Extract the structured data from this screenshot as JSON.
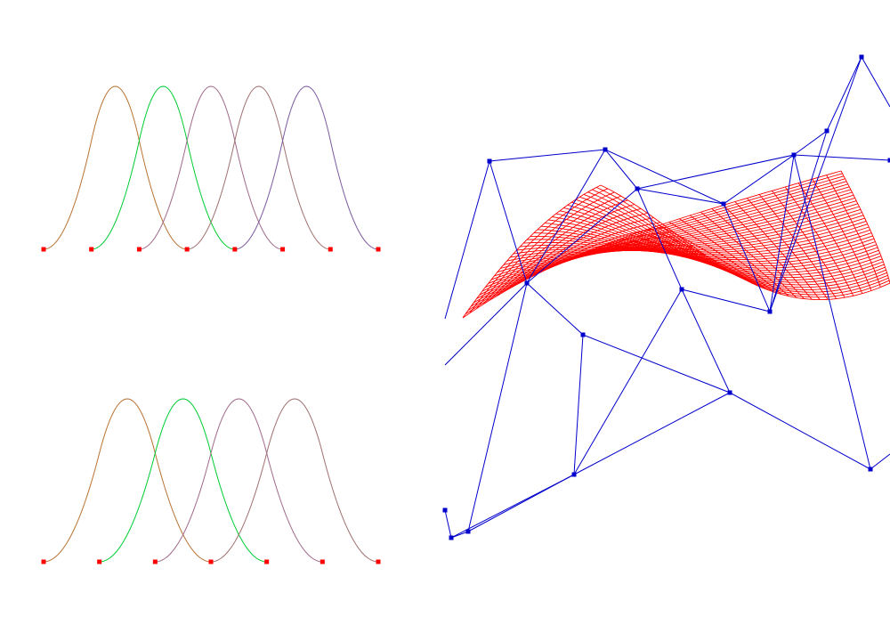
{
  "colors": {
    "background": "#ffffff",
    "knot_marker": "#ff0000",
    "control_net": "#0000cc",
    "surface_mesh": "#ff0000",
    "basis_palette": [
      "#b87333",
      "#00cc33",
      "#a06a8a",
      "#a07070",
      "#7a5aa0"
    ]
  },
  "top_basis": {
    "knots": [
      0,
      1,
      2,
      3,
      4,
      5,
      6,
      7
    ],
    "degree": 2,
    "function_count": 5,
    "colors": [
      "#b87333",
      "#00cc33",
      "#a06a8a",
      "#a07070",
      "#7a5aa0"
    ]
  },
  "bottom_basis": {
    "knots": [
      0,
      1,
      2,
      3,
      4,
      5,
      6
    ],
    "degree": 2,
    "function_count": 4,
    "colors": [
      "#b87333",
      "#00cc33",
      "#a06a8a",
      "#a07070"
    ]
  },
  "surface": {
    "control_grid_size": [
      4,
      4
    ],
    "mesh_resolution": [
      40,
      40
    ]
  }
}
